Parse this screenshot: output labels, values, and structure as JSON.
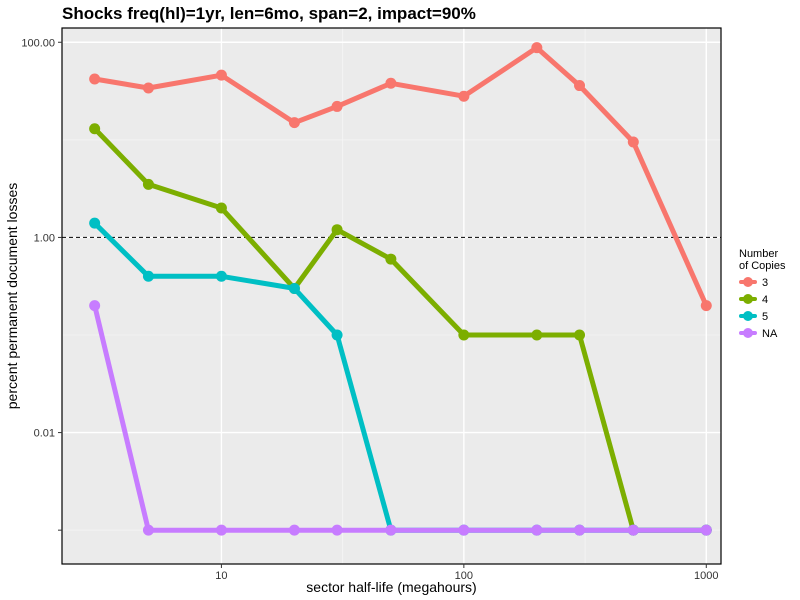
{
  "chart_data": {
    "type": "line",
    "title": "Shocks freq(hl)=1yr, len=6mo, span=2, impact=90%",
    "xlabel": "sector half-life (megahours)",
    "ylabel": "percent permanent document losses",
    "x_scale": "log",
    "y_scale": "log",
    "xlim": [
      2.2,
      1150
    ],
    "ylim": [
      0.00045,
      140
    ],
    "x_ticks": [
      10,
      100,
      1000
    ],
    "x_tick_labels": [
      "10",
      "100",
      "1000"
    ],
    "y_ticks": [
      100,
      1,
      0.01
    ],
    "y_tick_labels": [
      "100.00",
      "1.00",
      "0.01"
    ],
    "reference_line": {
      "y": 1,
      "style": "dashed"
    },
    "grid": true,
    "legend": {
      "title": "Number\nof Copies",
      "placement": "right"
    },
    "x": [
      3,
      5,
      10,
      20,
      30,
      50,
      100,
      200,
      300,
      500,
      1000
    ],
    "series": [
      {
        "name": "3",
        "color": "#F8766D",
        "values": [
          42,
          34,
          46,
          15,
          22,
          38,
          28,
          88,
          36,
          9.5,
          0.2
        ]
      },
      {
        "name": "4",
        "color": "#7CAE00",
        "values": [
          13,
          3.5,
          2.0,
          0.3,
          1.2,
          0.6,
          0.1,
          0.1,
          0.1,
          0.001,
          0.001
        ]
      },
      {
        "name": "5",
        "color": "#00BFC4",
        "values": [
          1.4,
          0.4,
          0.4,
          0.3,
          0.1,
          0.001,
          0.001,
          0.001,
          0.001,
          0.001,
          0.001
        ]
      },
      {
        "name": "NA",
        "color": "#C77CFF",
        "values": [
          0.2,
          0.001,
          0.001,
          0.001,
          0.001,
          0.001,
          0.001,
          0.001,
          0.001,
          0.001,
          0.001
        ]
      }
    ]
  }
}
